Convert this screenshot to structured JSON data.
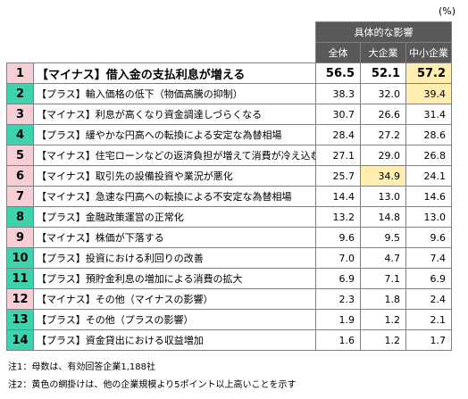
{
  "unit": "(%)",
  "group_header": "具体的な影響",
  "chart_data": {
    "type": "table",
    "columns": [
      "全体",
      "大企業",
      "中小企業"
    ],
    "rows": [
      {
        "rank": "1",
        "label": "【マイナス】借入金の支払利息が増える",
        "values": [
          "56.5",
          "52.1",
          "57.2"
        ],
        "kind": "minus",
        "highlight": [
          2
        ]
      },
      {
        "rank": "2",
        "label": "【プラス】輸入価格の低下（物価高騰の抑制）",
        "values": [
          "38.3",
          "32.0",
          "39.4"
        ],
        "kind": "plus",
        "highlight": [
          2
        ]
      },
      {
        "rank": "3",
        "label": "【マイナス】利息が高くなり資金調達しづらくなる",
        "values": [
          "30.7",
          "26.6",
          "31.4"
        ],
        "kind": "minus",
        "highlight": []
      },
      {
        "rank": "4",
        "label": "【プラス】緩やかな円高への転換による安定な為替相場",
        "values": [
          "28.4",
          "27.2",
          "28.6"
        ],
        "kind": "plus",
        "highlight": []
      },
      {
        "rank": "5",
        "label": "【マイナス】住宅ローンなどの返済負担が増えて消費が冷え込む",
        "values": [
          "27.1",
          "29.0",
          "26.8"
        ],
        "kind": "minus",
        "highlight": []
      },
      {
        "rank": "6",
        "label": "【マイナス】取引先の設備投資や業況が悪化",
        "values": [
          "25.7",
          "34.9",
          "24.1"
        ],
        "kind": "minus",
        "highlight": [
          1
        ]
      },
      {
        "rank": "7",
        "label": "【マイナス】急速な円高への転換による不安定な為替相場",
        "values": [
          "14.4",
          "13.0",
          "14.6"
        ],
        "kind": "minus",
        "highlight": []
      },
      {
        "rank": "8",
        "label": "【プラス】金融政策運営の正常化",
        "values": [
          "13.2",
          "14.8",
          "13.0"
        ],
        "kind": "plus",
        "highlight": []
      },
      {
        "rank": "9",
        "label": "【マイナス】株価が下落する",
        "values": [
          "9.6",
          "9.5",
          "9.6"
        ],
        "kind": "minus",
        "highlight": []
      },
      {
        "rank": "10",
        "label": "【プラス】投資における利回りの改善",
        "values": [
          "7.0",
          "4.7",
          "7.4"
        ],
        "kind": "plus",
        "highlight": []
      },
      {
        "rank": "11",
        "label": "【プラス】預貯金利息の増加による消費の拡大",
        "values": [
          "6.9",
          "7.1",
          "6.9"
        ],
        "kind": "plus",
        "highlight": []
      },
      {
        "rank": "12",
        "label": "【マイナス】その他（マイナスの影響）",
        "values": [
          "2.3",
          "1.8",
          "2.4"
        ],
        "kind": "minus",
        "highlight": []
      },
      {
        "rank": "13",
        "label": "【プラス】その他（プラスの影響）",
        "values": [
          "1.9",
          "1.2",
          "2.1"
        ],
        "kind": "plus",
        "highlight": []
      },
      {
        "rank": "14",
        "label": "【プラス】資金貸出における収益増加",
        "values": [
          "1.6",
          "1.2",
          "1.7"
        ],
        "kind": "plus",
        "highlight": []
      }
    ]
  },
  "notes": [
    "注1：母数は、有効回答企業1,188社",
    "注2：黄色の網掛けは、他の企業規模より5ポイント以上高いことを示す"
  ],
  "colors": {
    "minus_rank_bg": "#f6cfd6",
    "plus_rank_bg": "#3fd2ae",
    "header_bg": "#595959",
    "highlight_bg": "#ffeeb0"
  }
}
